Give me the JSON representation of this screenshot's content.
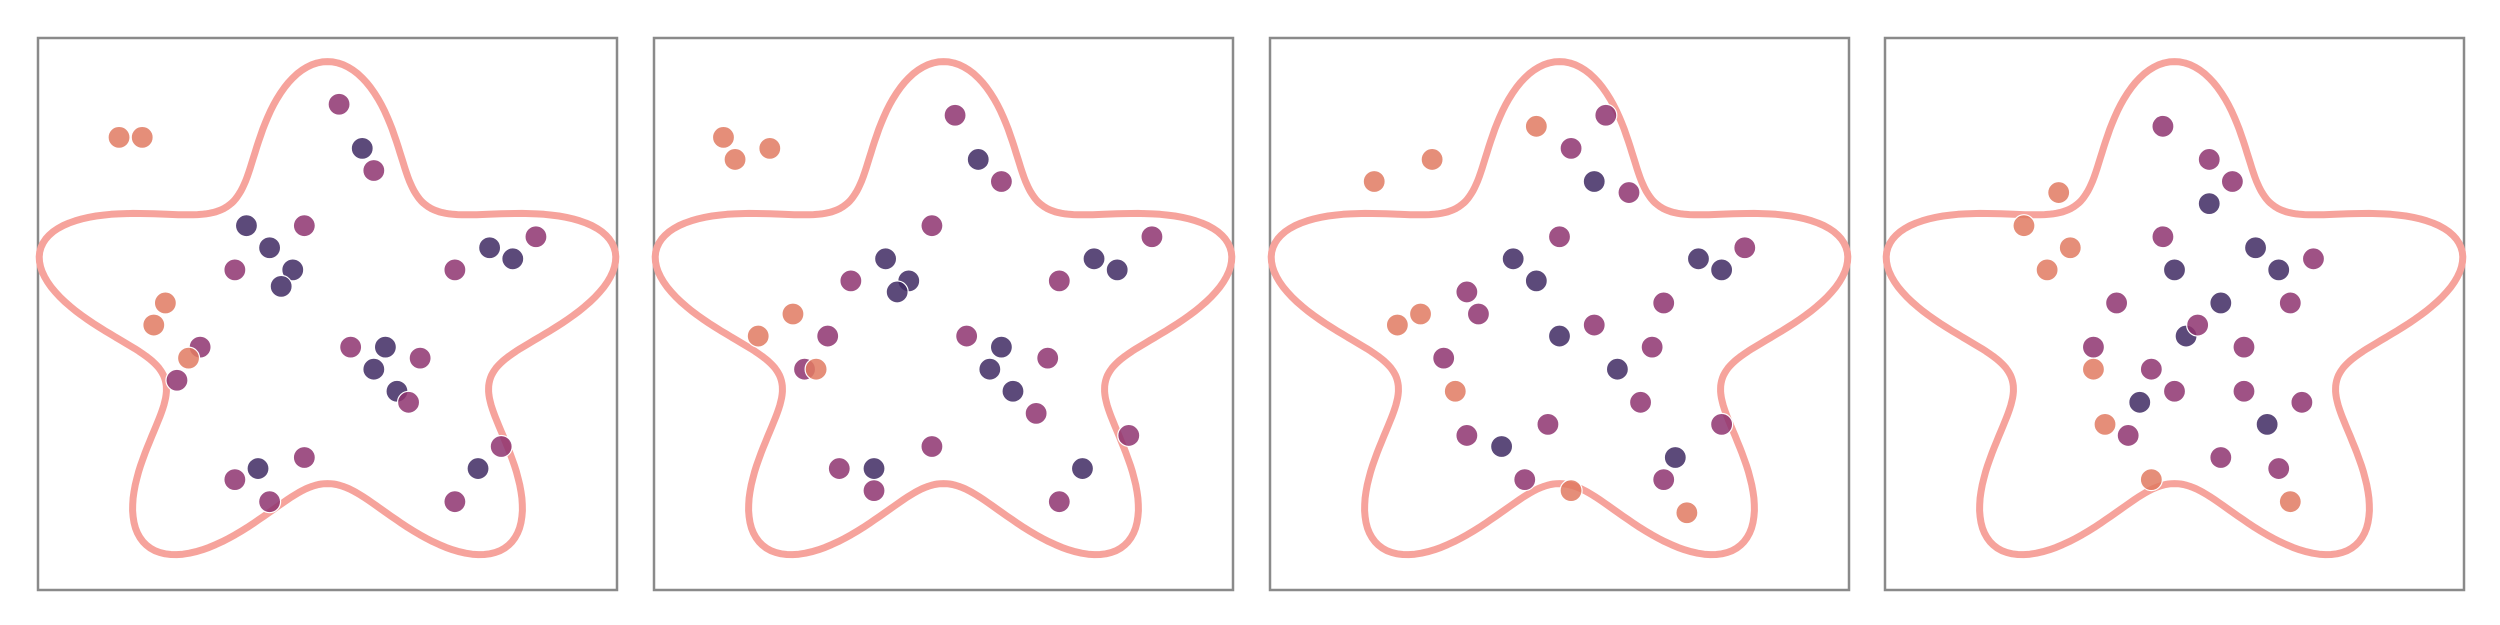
{
  "chart_data": [
    {
      "type": "scatter",
      "xlim": [
        0,
        100
      ],
      "ylim": [
        0,
        100
      ],
      "series": [
        {
          "color": "#3f2a63",
          "x": [
            40,
            44,
            36,
            58,
            62,
            78,
            82,
            56,
            38,
            76,
            42,
            60
          ],
          "y": [
            62,
            58,
            66,
            40,
            36,
            62,
            60,
            80,
            22,
            22,
            55,
            44
          ]
        },
        {
          "color": "#8e3470",
          "x": [
            34,
            46,
            54,
            66,
            72,
            86,
            58,
            34,
            46,
            72,
            80,
            24,
            28,
            52,
            64,
            40
          ],
          "y": [
            58,
            66,
            44,
            42,
            58,
            64,
            76,
            20,
            24,
            16,
            26,
            38,
            44,
            88,
            34,
            16
          ]
        },
        {
          "color": "#e07a62",
          "x": [
            14,
            20,
            22,
            18,
            26
          ],
          "y": [
            82,
            48,
            52,
            82,
            42
          ]
        }
      ]
    },
    {
      "type": "scatter",
      "xlim": [
        0,
        100
      ],
      "ylim": [
        0,
        100
      ],
      "series": [
        {
          "color": "#3f2a63",
          "x": [
            40,
            44,
            58,
            62,
            76,
            80,
            56,
            38,
            74,
            42,
            60
          ],
          "y": [
            60,
            56,
            40,
            36,
            60,
            58,
            78,
            22,
            22,
            54,
            44
          ]
        },
        {
          "color": "#8e3470",
          "x": [
            34,
            48,
            54,
            68,
            70,
            86,
            60,
            32,
            48,
            70,
            82,
            26,
            30,
            52,
            66,
            38
          ],
          "y": [
            56,
            66,
            46,
            42,
            56,
            64,
            74,
            22,
            26,
            16,
            28,
            40,
            46,
            86,
            32,
            18
          ]
        },
        {
          "color": "#e07a62",
          "x": [
            14,
            18,
            24,
            20,
            28,
            12
          ],
          "y": [
            78,
            46,
            50,
            80,
            40,
            82
          ]
        }
      ]
    },
    {
      "type": "scatter",
      "xlim": [
        0,
        100
      ],
      "ylim": [
        0,
        100
      ],
      "series": [
        {
          "color": "#3f2a63",
          "x": [
            42,
            46,
            60,
            74,
            78,
            56,
            40,
            70,
            50
          ],
          "y": [
            60,
            56,
            40,
            60,
            58,
            74,
            26,
            24,
            46
          ]
        },
        {
          "color": "#8e3470",
          "x": [
            34,
            50,
            56,
            66,
            68,
            82,
            62,
            34,
            48,
            68,
            78,
            30,
            36,
            52,
            64,
            44,
            58
          ],
          "y": [
            54,
            64,
            48,
            44,
            52,
            62,
            72,
            28,
            30,
            20,
            30,
            42,
            50,
            80,
            34,
            20,
            86
          ]
        },
        {
          "color": "#e07a62",
          "x": [
            18,
            22,
            26,
            28,
            32,
            72,
            52,
            46
          ],
          "y": [
            74,
            48,
            50,
            78,
            36,
            14,
            18,
            84
          ]
        }
      ]
    },
    {
      "type": "scatter",
      "xlim": [
        0,
        100
      ],
      "ylim": [
        0,
        100
      ],
      "series": [
        {
          "color": "#3f2a63",
          "x": [
            50,
            58,
            64,
            68,
            56,
            44,
            66,
            52
          ],
          "y": [
            58,
            52,
            62,
            58,
            70,
            34,
            30,
            46
          ]
        },
        {
          "color": "#8e3470",
          "x": [
            40,
            48,
            54,
            62,
            70,
            74,
            60,
            42,
            50,
            68,
            72,
            36,
            46,
            56,
            62,
            58,
            48
          ],
          "y": [
            52,
            64,
            48,
            44,
            52,
            60,
            74,
            28,
            36,
            22,
            34,
            44,
            40,
            78,
            36,
            24,
            84
          ]
        },
        {
          "color": "#e07a62",
          "x": [
            24,
            28,
            32,
            36,
            38,
            70,
            46,
            30
          ],
          "y": [
            66,
            58,
            62,
            40,
            30,
            16,
            20,
            72
          ]
        }
      ]
    }
  ]
}
